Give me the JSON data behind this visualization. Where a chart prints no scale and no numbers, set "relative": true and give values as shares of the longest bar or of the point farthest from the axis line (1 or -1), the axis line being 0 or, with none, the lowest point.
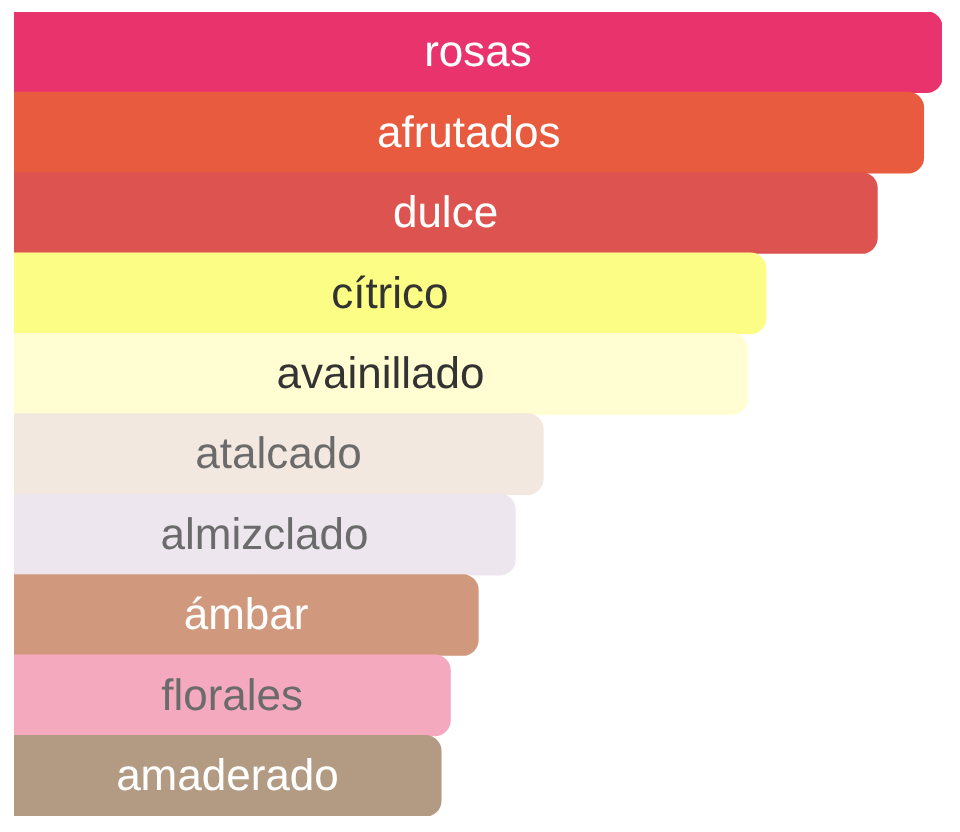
{
  "chart_data": {
    "type": "bar",
    "orientation": "horizontal",
    "relative": true,
    "categories": [
      "rosas",
      "afrutados",
      "dulce",
      "cítrico",
      "avainillado",
      "atalcado",
      "almizclado",
      "ámbar",
      "florales",
      "amaderado"
    ],
    "values": [
      1,
      0.98,
      0.93,
      0.81,
      0.79,
      0.57,
      0.54,
      0.5,
      0.47,
      0.46
    ],
    "colors": [
      "#e8336c",
      "#e85b3e",
      "#dc5350",
      "#fbfd85",
      "#fffdd1",
      "#f2e8df",
      "#ede6ef",
      "#d0987c",
      "#f4a9bf",
      "#b29b82"
    ]
  }
}
